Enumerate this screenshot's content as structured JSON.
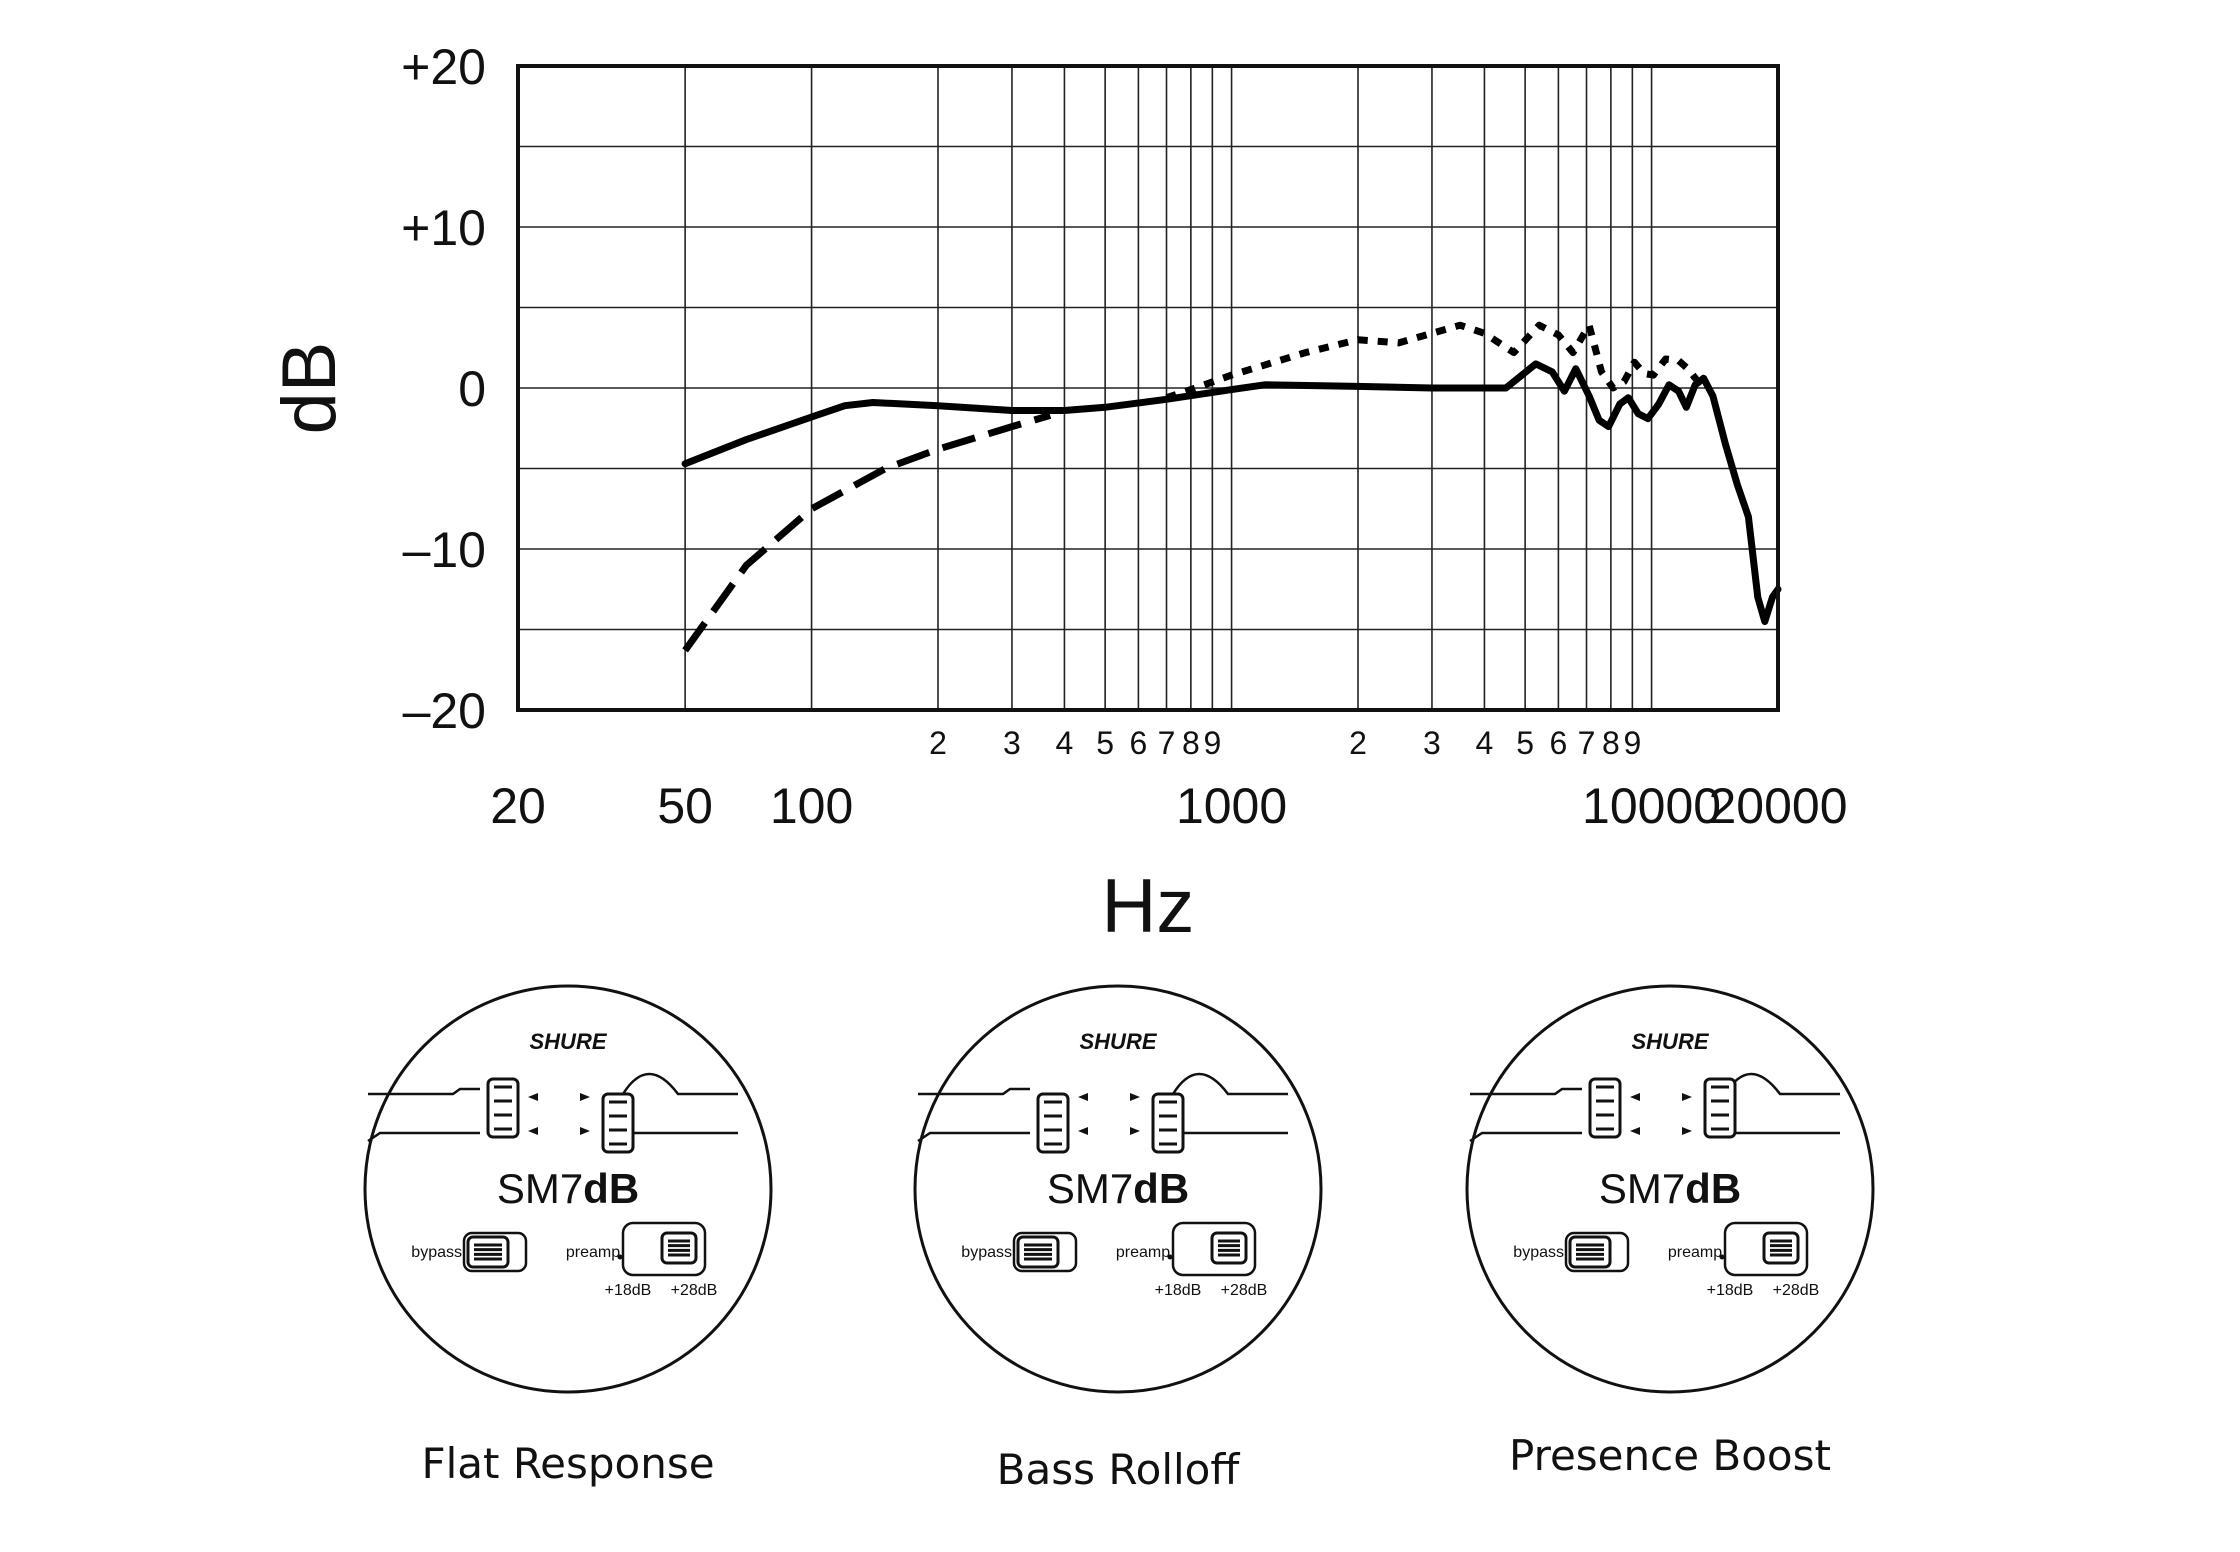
{
  "chart_data": {
    "type": "line",
    "xscale": "log",
    "xlim": [
      20,
      20000
    ],
    "ylim": [
      -20,
      20
    ],
    "xlabel": "Hz",
    "ylabel": "dB",
    "y_ticks": [
      "+20",
      "+10",
      "0",
      "–10",
      "–20"
    ],
    "y_tick_values": [
      20,
      10,
      0,
      -10,
      -20
    ],
    "x_major_ticks": [
      "20",
      "50",
      "100",
      "1000",
      "10000",
      "20000"
    ],
    "x_major_tick_values": [
      20,
      50,
      100,
      1000,
      10000,
      20000
    ],
    "x_minor_ticks": [
      {
        "label": "2",
        "x": 200
      },
      {
        "label": "3",
        "x": 300
      },
      {
        "label": "4",
        "x": 400
      },
      {
        "label": "5",
        "x": 500
      },
      {
        "label": "6",
        "x": 600
      },
      {
        "label": "7",
        "x": 700
      },
      {
        "label": "8",
        "x": 800
      },
      {
        "label": "9",
        "x": 900
      },
      {
        "label": "2",
        "x": 2000
      },
      {
        "label": "3",
        "x": 3000
      },
      {
        "label": "4",
        "x": 4000
      },
      {
        "label": "5",
        "x": 5000
      },
      {
        "label": "6",
        "x": 6000
      },
      {
        "label": "7",
        "x": 7000
      },
      {
        "label": "8",
        "x": 8000
      },
      {
        "label": "9",
        "x": 9000
      }
    ],
    "grid_x": [
      50,
      100,
      200,
      300,
      400,
      500,
      600,
      700,
      800,
      900,
      1000,
      2000,
      3000,
      4000,
      5000,
      6000,
      7000,
      8000,
      9000,
      10000
    ],
    "grid_y": [
      15,
      10,
      5,
      0,
      -5,
      -10,
      -15
    ],
    "grid": true,
    "series": [
      {
        "style": "solid",
        "points": [
          [
            50,
            -4.7
          ],
          [
            70,
            -3.2
          ],
          [
            100,
            -1.8
          ],
          [
            120,
            -1.1
          ],
          [
            140,
            -0.9
          ],
          [
            200,
            -1.1
          ],
          [
            300,
            -1.4
          ],
          [
            400,
            -1.4
          ],
          [
            500,
            -1.2
          ],
          [
            700,
            -0.7
          ],
          [
            1000,
            -0.1
          ],
          [
            1200,
            0.2
          ],
          [
            2000,
            0.1
          ],
          [
            3000,
            0.0
          ],
          [
            4500,
            0.0
          ],
          [
            5300,
            1.5
          ],
          [
            5800,
            1.0
          ],
          [
            6200,
            -0.2
          ],
          [
            6600,
            1.2
          ],
          [
            7100,
            -0.5
          ],
          [
            7500,
            -2.0
          ],
          [
            7900,
            -2.4
          ],
          [
            8400,
            -1.0
          ],
          [
            8800,
            -0.6
          ],
          [
            9300,
            -1.6
          ],
          [
            9800,
            -1.9
          ],
          [
            10400,
            -1.0
          ],
          [
            11000,
            0.2
          ],
          [
            11600,
            -0.2
          ],
          [
            12100,
            -1.2
          ],
          [
            12700,
            0.2
          ],
          [
            13300,
            0.6
          ],
          [
            14000,
            -0.5
          ],
          [
            15000,
            -3.5
          ],
          [
            16000,
            -6.0
          ],
          [
            17000,
            -8.0
          ],
          [
            17900,
            -13.0
          ],
          [
            18600,
            -14.5
          ],
          [
            19400,
            -13.0
          ],
          [
            20000,
            -12.5
          ]
        ]
      },
      {
        "style": "dashed",
        "points": [
          [
            50,
            -16.3
          ],
          [
            70,
            -11.0
          ],
          [
            100,
            -7.5
          ],
          [
            150,
            -5.0
          ],
          [
            200,
            -3.8
          ],
          [
            300,
            -2.4
          ],
          [
            370,
            -1.7
          ]
        ]
      },
      {
        "style": "dotted",
        "points": [
          [
            700,
            -0.6
          ],
          [
            800,
            -0.1
          ],
          [
            1000,
            0.8
          ],
          [
            1500,
            2.2
          ],
          [
            2000,
            3.0
          ],
          [
            2500,
            2.8
          ],
          [
            3000,
            3.4
          ],
          [
            3500,
            3.9
          ],
          [
            4000,
            3.4
          ],
          [
            4700,
            2.2
          ],
          [
            5400,
            3.9
          ],
          [
            6000,
            3.3
          ],
          [
            6500,
            2.2
          ],
          [
            7100,
            3.9
          ],
          [
            7600,
            1.0
          ],
          [
            8100,
            0.0
          ],
          [
            8600,
            0.4
          ],
          [
            9100,
            1.6
          ],
          [
            9600,
            0.9
          ],
          [
            10100,
            0.8
          ],
          [
            10800,
            1.8
          ],
          [
            11600,
            1.7
          ],
          [
            12200,
            1.2
          ],
          [
            12800,
            0.5
          ]
        ]
      }
    ]
  },
  "dials": [
    {
      "brand": "SHURE",
      "model_prefix": "SM7",
      "model_suffix": "dB",
      "bypass_label": "bypass",
      "preamp_label": "preamp",
      "gain_low": "+18dB",
      "gain_high": "+28dB",
      "caption": "Flat Response"
    },
    {
      "brand": "SHURE",
      "model_prefix": "SM7",
      "model_suffix": "dB",
      "bypass_label": "bypass",
      "preamp_label": "preamp",
      "gain_low": "+18dB",
      "gain_high": "+28dB",
      "caption": "Bass Rolloff"
    },
    {
      "brand": "SHURE",
      "model_prefix": "SM7",
      "model_suffix": "dB",
      "bypass_label": "bypass",
      "preamp_label": "preamp",
      "gain_low": "+18dB",
      "gain_high": "+28dB",
      "caption": "Presence Boost"
    }
  ]
}
